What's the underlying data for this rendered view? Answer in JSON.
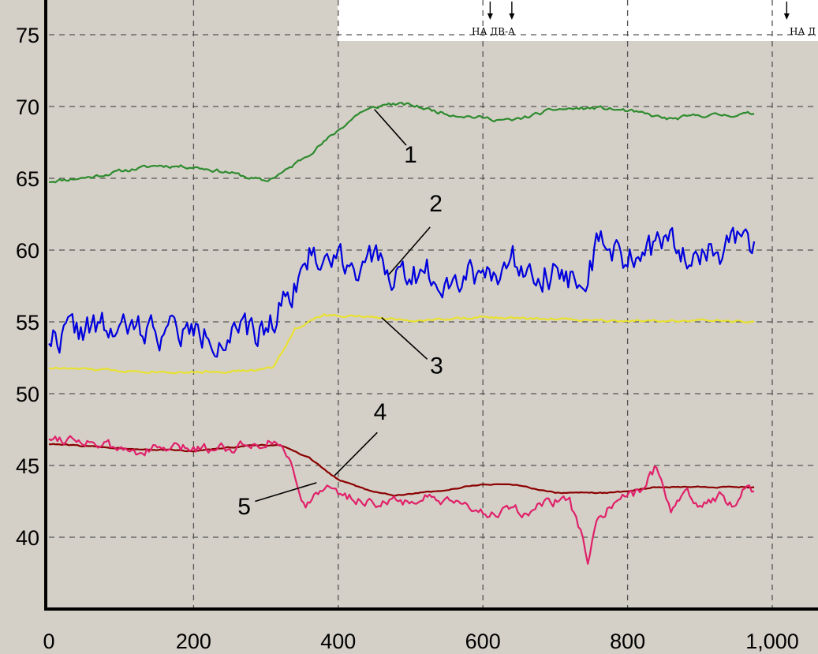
{
  "chart_data": {
    "type": "line",
    "title": "",
    "xlabel": "",
    "ylabel": "",
    "xlim": [
      -20,
      1040
    ],
    "ylim": [
      35,
      76.5
    ],
    "x_ticks": [
      0,
      200,
      400,
      600,
      800,
      1000
    ],
    "x_tick_labels": [
      "0",
      "200",
      "400",
      "600",
      "800",
      "1,000"
    ],
    "y_ticks": [
      40,
      45,
      50,
      55,
      60,
      65,
      70,
      75
    ],
    "y_tick_labels": [
      "40",
      "45",
      "50",
      "55",
      "60",
      "65",
      "70",
      "75"
    ],
    "grid": true,
    "series": [
      {
        "id": "1",
        "color": "#2e8b2e",
        "noise": 0.12,
        "seed": 11,
        "points": [
          [
            0,
            64.8
          ],
          [
            60,
            65.1
          ],
          [
            100,
            65.5
          ],
          [
            150,
            65.9
          ],
          [
            200,
            65.8
          ],
          [
            250,
            65.4
          ],
          [
            280,
            65.0
          ],
          [
            300,
            64.8
          ],
          [
            330,
            65.6
          ],
          [
            380,
            67.5
          ],
          [
            430,
            69.6
          ],
          [
            470,
            70.2
          ],
          [
            500,
            70.1
          ],
          [
            550,
            69.5
          ],
          [
            600,
            69.2
          ],
          [
            640,
            69.0
          ],
          [
            700,
            69.8
          ],
          [
            760,
            69.9
          ],
          [
            800,
            69.7
          ],
          [
            860,
            69.1
          ],
          [
            900,
            69.4
          ],
          [
            940,
            69.4
          ],
          [
            975,
            69.5
          ]
        ]
      },
      {
        "id": "2",
        "color": "#0000dd",
        "noise": 1.1,
        "seed": 22,
        "points": [
          [
            0,
            54.0
          ],
          [
            50,
            54.5
          ],
          [
            100,
            54.3
          ],
          [
            150,
            54.5
          ],
          [
            200,
            54.2
          ],
          [
            250,
            54.1
          ],
          [
            280,
            53.9
          ],
          [
            300,
            54.5
          ],
          [
            330,
            57.0
          ],
          [
            360,
            59.5
          ],
          [
            400,
            59.5
          ],
          [
            440,
            59.0
          ],
          [
            480,
            58.5
          ],
          [
            550,
            58.3
          ],
          [
            600,
            58.5
          ],
          [
            650,
            59.3
          ],
          [
            700,
            58.5
          ],
          [
            730,
            57.8
          ],
          [
            760,
            60.2
          ],
          [
            800,
            59.5
          ],
          [
            850,
            60.2
          ],
          [
            900,
            60.0
          ],
          [
            940,
            60.0
          ],
          [
            975,
            60.6
          ]
        ]
      },
      {
        "id": "3",
        "color": "#e8e030",
        "noise": 0.08,
        "seed": 33,
        "points": [
          [
            0,
            51.8
          ],
          [
            100,
            51.6
          ],
          [
            200,
            51.5
          ],
          [
            280,
            51.6
          ],
          [
            310,
            51.8
          ],
          [
            340,
            54.5
          ],
          [
            380,
            55.5
          ],
          [
            450,
            55.3
          ],
          [
            500,
            55.1
          ],
          [
            600,
            55.3
          ],
          [
            700,
            55.2
          ],
          [
            800,
            55.1
          ],
          [
            900,
            55.1
          ],
          [
            975,
            55.0
          ]
        ]
      },
      {
        "id": "4",
        "color": "#8b0000",
        "noise": 0.04,
        "seed": 44,
        "points": [
          [
            0,
            46.5
          ],
          [
            100,
            46.2
          ],
          [
            200,
            46.0
          ],
          [
            280,
            46.4
          ],
          [
            320,
            46.4
          ],
          [
            360,
            45.5
          ],
          [
            400,
            44.0
          ],
          [
            440,
            43.3
          ],
          [
            480,
            42.9
          ],
          [
            550,
            43.3
          ],
          [
            600,
            43.7
          ],
          [
            650,
            43.6
          ],
          [
            700,
            43.1
          ],
          [
            780,
            43.1
          ],
          [
            840,
            43.5
          ],
          [
            900,
            43.5
          ],
          [
            975,
            43.5
          ]
        ]
      },
      {
        "id": "5",
        "color": "#e0206a",
        "noise": 0.35,
        "seed": 55,
        "points": [
          [
            0,
            47.0
          ],
          [
            50,
            46.8
          ],
          [
            100,
            46.0
          ],
          [
            150,
            46.1
          ],
          [
            200,
            46.2
          ],
          [
            250,
            46.3
          ],
          [
            300,
            46.7
          ],
          [
            320,
            46.5
          ],
          [
            340,
            44.5
          ],
          [
            355,
            42.0
          ],
          [
            375,
            43.5
          ],
          [
            400,
            43.0
          ],
          [
            440,
            42.5
          ],
          [
            480,
            42.4
          ],
          [
            520,
            42.7
          ],
          [
            560,
            42.2
          ],
          [
            600,
            41.8
          ],
          [
            660,
            41.7
          ],
          [
            700,
            42.5
          ],
          [
            720,
            42.3
          ],
          [
            735,
            40.5
          ],
          [
            745,
            38.2
          ],
          [
            760,
            41.5
          ],
          [
            790,
            42.5
          ],
          [
            820,
            43.3
          ],
          [
            840,
            45.0
          ],
          [
            850,
            43.5
          ],
          [
            860,
            42.0
          ],
          [
            880,
            43.5
          ],
          [
            900,
            42.0
          ],
          [
            930,
            43.0
          ],
          [
            950,
            42.0
          ],
          [
            965,
            43.8
          ],
          [
            975,
            43.2
          ]
        ]
      }
    ],
    "callouts": [
      {
        "label": "1",
        "tx": 500,
        "ty": 66.1,
        "lx1": 494,
        "ly1": 67.3,
        "lx2": 450,
        "ly2": 69.8
      },
      {
        "label": "2",
        "tx": 535,
        "ty": 62.7,
        "lx1": 527,
        "ly1": 61.6,
        "lx2": 470,
        "ly2": 58.3
      },
      {
        "label": "3",
        "tx": 536,
        "ty": 51.4,
        "lx1": 523,
        "ly1": 52.4,
        "lx2": 460,
        "ly2": 55.3
      },
      {
        "label": "4",
        "tx": 458,
        "ty": 48.2,
        "lx1": 454,
        "ly1": 47.3,
        "lx2": 395,
        "ly2": 44.3
      },
      {
        "label": "5",
        "tx": 270,
        "ty": 41.6,
        "lx1": 285,
        "ly1": 42.5,
        "lx2": 370,
        "ly2": 43.8
      }
    ],
    "annotations": [
      {
        "text": "НА ДВ-А",
        "arrow_x": [
          610,
          640
        ]
      },
      {
        "text": "НА Д",
        "arrow_x": [
          1020
        ]
      }
    ]
  }
}
